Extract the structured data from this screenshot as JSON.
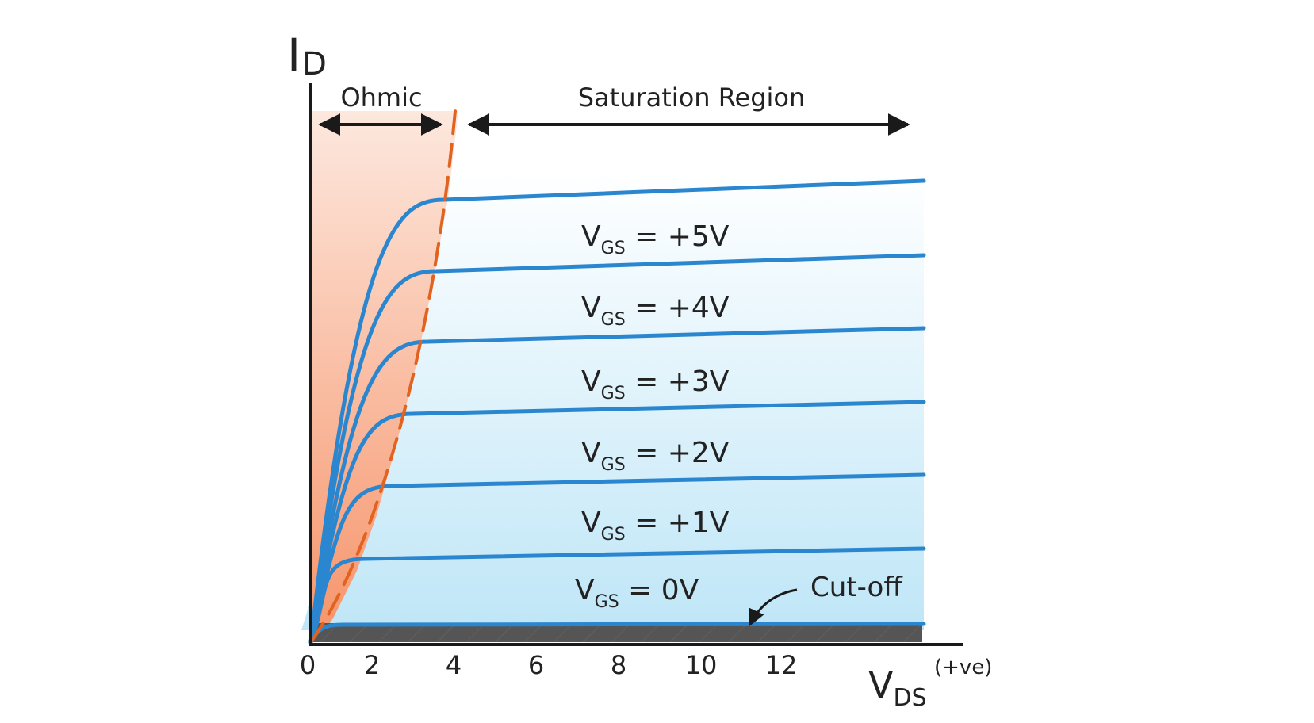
{
  "axes": {
    "y_label_main": "I",
    "y_label_sub": "D",
    "x_label_main": "V",
    "x_label_sub": "DS",
    "x_label_note": "(+ve)",
    "x_ticks": [
      "0",
      "2",
      "4",
      "6",
      "8",
      "10",
      "12"
    ]
  },
  "regions": {
    "ohmic_label": "Ohmic",
    "saturation_label": "Saturation Region",
    "cutoff_label": "Cut-off"
  },
  "curves": [
    {
      "v": "V",
      "sub": "GS",
      "rest": " =  +5V",
      "level": 5
    },
    {
      "v": "V",
      "sub": "GS",
      "rest": " =  +4V",
      "level": 4
    },
    {
      "v": "V",
      "sub": "GS",
      "rest": " =  +3V",
      "level": 3
    },
    {
      "v": "V",
      "sub": "GS",
      "rest": " =  +2V",
      "level": 2
    },
    {
      "v": "V",
      "sub": "GS",
      "rest": " =  +1V",
      "level": 1
    },
    {
      "v": "V",
      "sub": "GS",
      "rest": " = 0V",
      "level": 0
    }
  ],
  "colors": {
    "curve": "#2b86d0",
    "boundary": "#e2621f",
    "ohmic_fill": "#f6946a",
    "saturation_fill": "#bfe6f7",
    "cutoff_fill": "#555555",
    "axis": "#1a1a1a"
  }
}
